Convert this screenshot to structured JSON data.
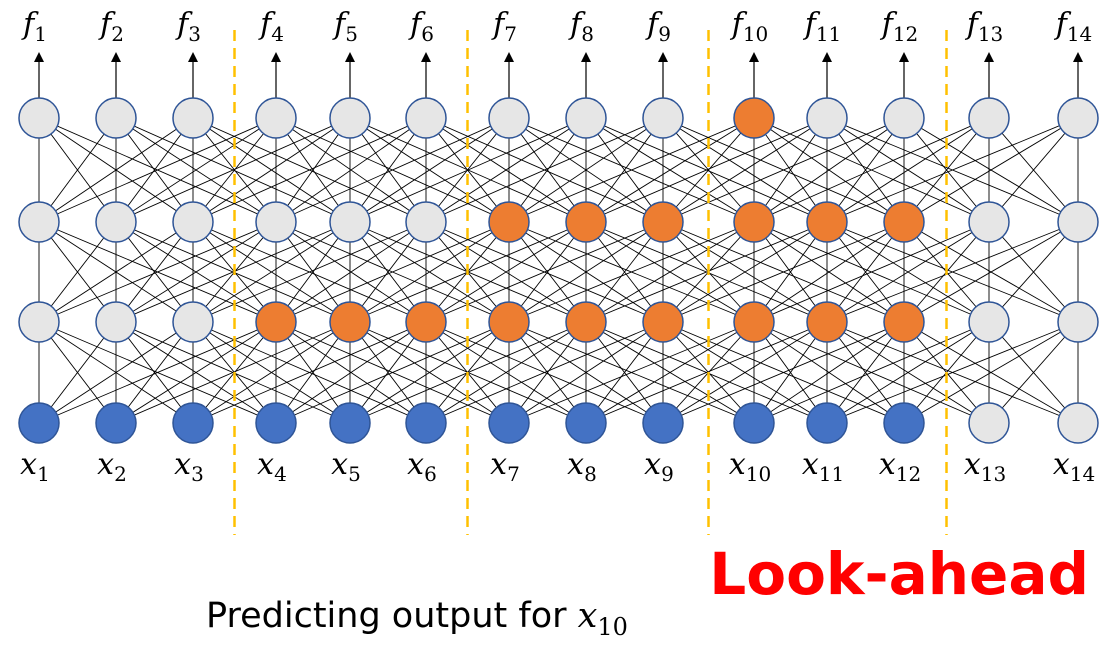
{
  "diagram": {
    "columns": 14,
    "layers": 4,
    "output_labels": [
      "f",
      "f",
      "f",
      "f",
      "f",
      "f",
      "f",
      "f",
      "f",
      "f",
      "f",
      "f",
      "f",
      "f"
    ],
    "output_subscripts": [
      "1",
      "2",
      "3",
      "4",
      "5",
      "6",
      "7",
      "8",
      "9",
      "10",
      "11",
      "12",
      "13",
      "14"
    ],
    "input_labels": [
      "x",
      "x",
      "x",
      "x",
      "x",
      "x",
      "x",
      "x",
      "x",
      "x",
      "x",
      "x",
      "x",
      "x"
    ],
    "input_subscripts": [
      "1",
      "2",
      "3",
      "4",
      "5",
      "6",
      "7",
      "8",
      "9",
      "10",
      "11",
      "12",
      "13",
      "14"
    ],
    "node_states": [
      [
        "g",
        "g",
        "g",
        "g",
        "g",
        "g",
        "g",
        "g",
        "g",
        "o",
        "g",
        "g",
        "g",
        "g"
      ],
      [
        "g",
        "g",
        "g",
        "g",
        "g",
        "g",
        "o",
        "o",
        "o",
        "o",
        "o",
        "o",
        "g",
        "g"
      ],
      [
        "g",
        "g",
        "g",
        "o",
        "o",
        "o",
        "o",
        "o",
        "o",
        "o",
        "o",
        "o",
        "g",
        "g"
      ],
      [
        "b",
        "b",
        "b",
        "b",
        "b",
        "b",
        "b",
        "b",
        "b",
        "b",
        "b",
        "b",
        "g",
        "g"
      ]
    ],
    "colors": {
      "g": "#e6e6e6",
      "o": "#ed7d31",
      "b": "#4472c4",
      "node_stroke": "#2f5597",
      "separator": "#ffc000"
    },
    "separator_after_columns": [
      3,
      6,
      9,
      12
    ]
  },
  "caption": {
    "text": "Predicting output for ",
    "var": "x",
    "sub": "10"
  },
  "badge": {
    "text": "Look-ahead"
  }
}
